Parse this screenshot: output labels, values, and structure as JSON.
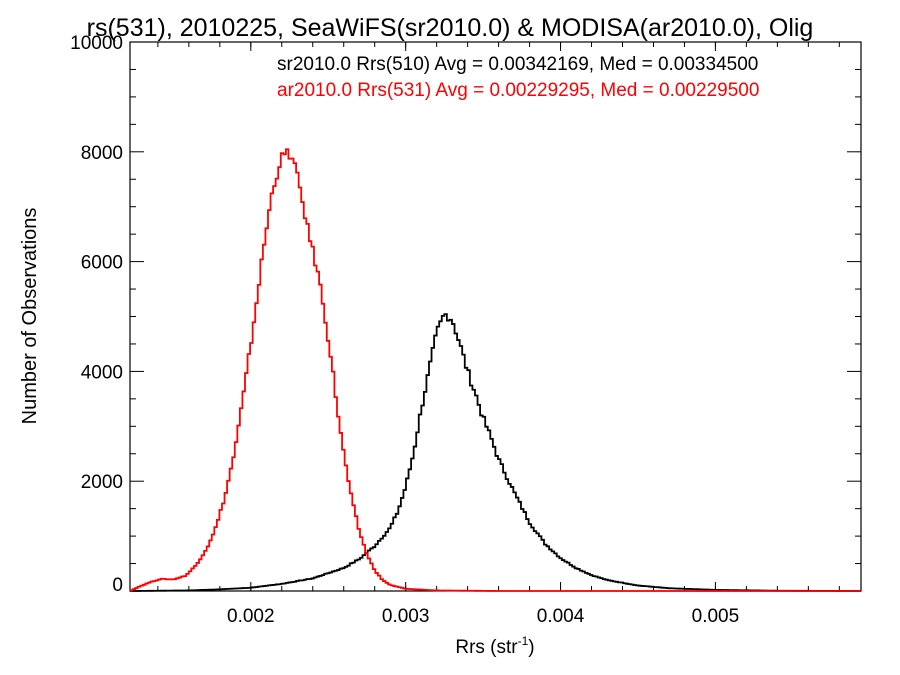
{
  "chart_data": {
    "type": "line",
    "title": "rs(531), 2010225, SeaWiFS(sr2010.0) & MODISA(ar2010.0), Olig",
    "xlabel": "Rrs (str",
    "xlabel_sup": "-1",
    "xlabel_close": ")",
    "ylabel": "Number of Observations",
    "xlim": [
      0.00122,
      0.00594
    ],
    "ylim": [
      0,
      10000
    ],
    "x_ticks": [
      0.002,
      0.003,
      0.004,
      0.005
    ],
    "x_tick_labels": [
      "0.002",
      "0.003",
      "0.004",
      "0.005"
    ],
    "y_ticks": [
      0,
      2000,
      4000,
      6000,
      8000,
      10000
    ],
    "y_tick_labels": [
      "0",
      "2000",
      "4000",
      "6000",
      "8000",
      "10000"
    ],
    "grid": false,
    "legend_position": "top-right",
    "series": [
      {
        "name": "sr2010.0 Rrs(510) Avg = 0.00342169, Med = 0.00334500",
        "color": "#000000",
        "style": "step",
        "points": [
          [
            0.00122,
            0
          ],
          [
            0.0016,
            10
          ],
          [
            0.0018,
            30
          ],
          [
            0.002,
            60
          ],
          [
            0.0022,
            130
          ],
          [
            0.0024,
            230
          ],
          [
            0.0026,
            420
          ],
          [
            0.0027,
            580
          ],
          [
            0.0028,
            820
          ],
          [
            0.0029,
            1150
          ],
          [
            0.00295,
            1450
          ],
          [
            0.003,
            1900
          ],
          [
            0.00305,
            2500
          ],
          [
            0.0031,
            3300
          ],
          [
            0.00315,
            4000
          ],
          [
            0.0032,
            4700
          ],
          [
            0.00325,
            5050
          ],
          [
            0.0033,
            4950
          ],
          [
            0.00335,
            4500
          ],
          [
            0.0034,
            4000
          ],
          [
            0.00345,
            3600
          ],
          [
            0.0035,
            3150
          ],
          [
            0.00355,
            2800
          ],
          [
            0.0036,
            2400
          ],
          [
            0.0037,
            1800
          ],
          [
            0.0038,
            1250
          ],
          [
            0.0039,
            860
          ],
          [
            0.004,
            600
          ],
          [
            0.0041,
            420
          ],
          [
            0.0042,
            290
          ],
          [
            0.0043,
            200
          ],
          [
            0.0045,
            100
          ],
          [
            0.0047,
            50
          ],
          [
            0.005,
            20
          ],
          [
            0.0054,
            5
          ],
          [
            0.00594,
            0
          ]
        ]
      },
      {
        "name": "ar2010.0 Rrs(531) Avg = 0.00229295, Med = 0.00229500",
        "color": "#ff0000",
        "style": "step",
        "points": [
          [
            0.00122,
            0
          ],
          [
            0.00128,
            80
          ],
          [
            0.00135,
            160
          ],
          [
            0.00142,
            220
          ],
          [
            0.0015,
            210
          ],
          [
            0.00158,
            280
          ],
          [
            0.00165,
            480
          ],
          [
            0.00172,
            800
          ],
          [
            0.00178,
            1200
          ],
          [
            0.00184,
            1800
          ],
          [
            0.0019,
            2600
          ],
          [
            0.00196,
            3700
          ],
          [
            0.00202,
            4900
          ],
          [
            0.00208,
            6200
          ],
          [
            0.00214,
            7300
          ],
          [
            0.0022,
            7900
          ],
          [
            0.00224,
            8000
          ],
          [
            0.00228,
            7800
          ],
          [
            0.00232,
            7300
          ],
          [
            0.00236,
            6700
          ],
          [
            0.0024,
            6200
          ],
          [
            0.00244,
            5700
          ],
          [
            0.00248,
            5000
          ],
          [
            0.00252,
            4200
          ],
          [
            0.00256,
            3300
          ],
          [
            0.0026,
            2500
          ],
          [
            0.00265,
            1700
          ],
          [
            0.0027,
            1100
          ],
          [
            0.00275,
            660
          ],
          [
            0.0028,
            380
          ],
          [
            0.00285,
            200
          ],
          [
            0.0029,
            110
          ],
          [
            0.003,
            40
          ],
          [
            0.0032,
            10
          ],
          [
            0.0036,
            0
          ],
          [
            0.00594,
            0
          ]
        ]
      }
    ]
  }
}
